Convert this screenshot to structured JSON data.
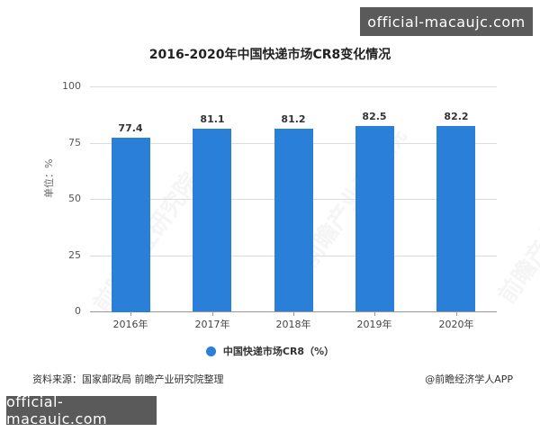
{
  "watermarks": {
    "top_right": "official-macaujc.com",
    "bottom_left": "official-macaujc.com",
    "background": "前瞻产业研究院"
  },
  "chart_data": {
    "type": "bar",
    "title": "2016-2020年中国快递市场CR8变化情况",
    "xlabel": "",
    "ylabel": "单位：%",
    "categories": [
      "2016年",
      "2017年",
      "2018年",
      "2019年",
      "2020年"
    ],
    "series": [
      {
        "name": "中国快递市场CR8（%）",
        "values": [
          77.4,
          81.1,
          81.2,
          82.5,
          82.2
        ],
        "color": "#2a7fd9"
      }
    ],
    "value_labels": [
      "77.4",
      "81.1",
      "81.2",
      "82.5",
      "82.2"
    ],
    "ylim": [
      0,
      100
    ],
    "yticks": [
      "0",
      "25",
      "50",
      "75",
      "100"
    ],
    "grid": true,
    "legend_position": "bottom"
  },
  "footer": {
    "source": "资料来源：国家邮政局 前瞻产业研究院整理",
    "credit": "@前瞻经济学人APP"
  }
}
